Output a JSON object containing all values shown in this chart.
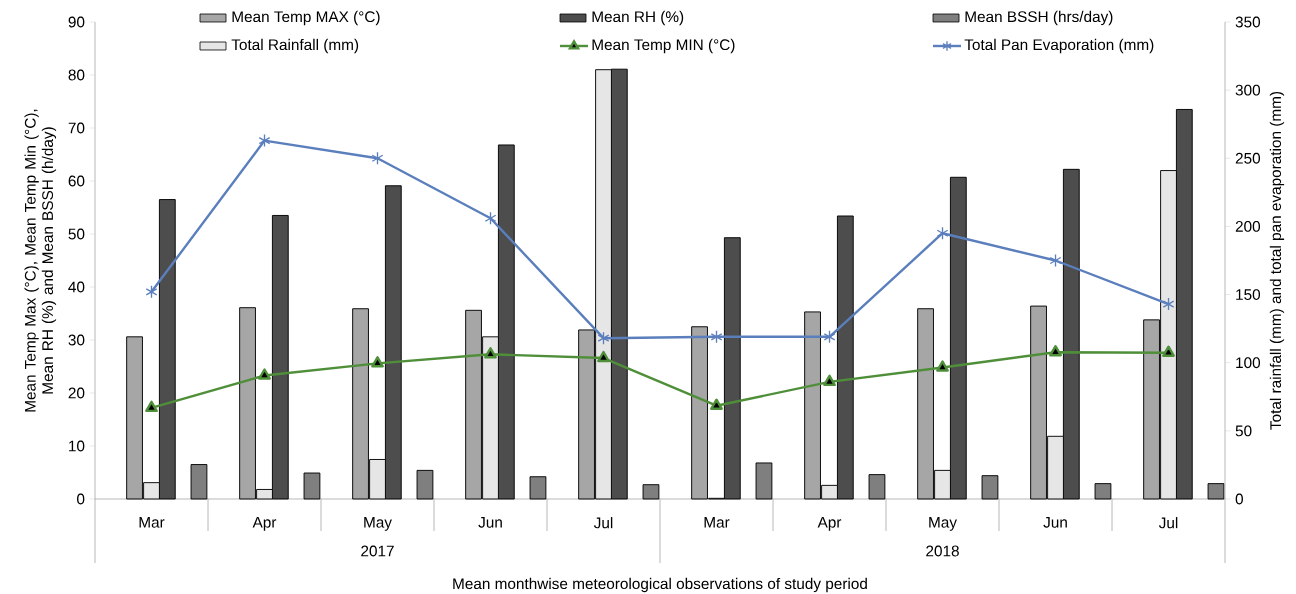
{
  "chart_data": {
    "type": "bar",
    "xlabel": "Mean  monthwise meteorological observations of study period",
    "ylabel": "Mean Temp Max (°C), Mean Temp Min (°C), Mean RH (%) and Mean BSSH (h/day)",
    "y2label": "Total rainfall (mm) and total pan evaporation (mm)",
    "categories": [
      "Mar",
      "Apr",
      "May",
      "Jun",
      "Jul",
      "Mar",
      "Apr",
      "May",
      "Jun",
      "Jul"
    ],
    "annotations": [
      "2017",
      "2018"
    ],
    "series": [
      {
        "name": "Mean Temp MAX (°C)",
        "color": "#a6a6a6",
        "values": [
          30.6,
          36.1,
          35.9,
          35.6,
          31.9,
          32.5,
          35.3,
          35.9,
          36.4,
          33.8
        ]
      },
      {
        "name": "Mean RH (%)",
        "color": "#4d4d4d",
        "values": [
          56.5,
          53.5,
          59.1,
          66.8,
          81.1,
          49.3,
          53.4,
          60.7,
          62.2,
          73.5
        ]
      },
      {
        "name": "Mean BSSH (hrs/day)",
        "color": "#7f7f7f",
        "values": [
          6.5,
          4.9,
          5.4,
          4.2,
          2.7,
          6.8,
          4.6,
          4.4,
          2.9,
          2.9
        ]
      },
      {
        "name": "Total Rainfall (mm)",
        "color": "#e6e6e6",
        "axis": "y2",
        "values": [
          12,
          7,
          29,
          119,
          315,
          0.5,
          10,
          21,
          46,
          241
        ]
      },
      {
        "name": "Mean Temp MIN (°C)",
        "type": "line",
        "color": "#4f8f3a",
        "marker": "triangle",
        "values": [
          17.2,
          23.3,
          25.6,
          27.3,
          26.6,
          17.6,
          22.1,
          24.8,
          27.7,
          27.6
        ]
      },
      {
        "name": "Total Pan Evaporation (mm)",
        "type": "line",
        "color": "#5b7fbd",
        "marker": "cross",
        "axis": "y2",
        "values": [
          152,
          263,
          250,
          206,
          118,
          119,
          119,
          195,
          175,
          143
        ]
      }
    ],
    "ylim": [
      0,
      90
    ],
    "yticks": [
      0,
      10,
      20,
      30,
      40,
      50,
      60,
      70,
      80,
      90
    ],
    "y2lim": [
      0,
      350
    ],
    "y2ticks": [
      0,
      50,
      100,
      150,
      200,
      250,
      300,
      350
    ],
    "grid": false,
    "legend": "top"
  }
}
